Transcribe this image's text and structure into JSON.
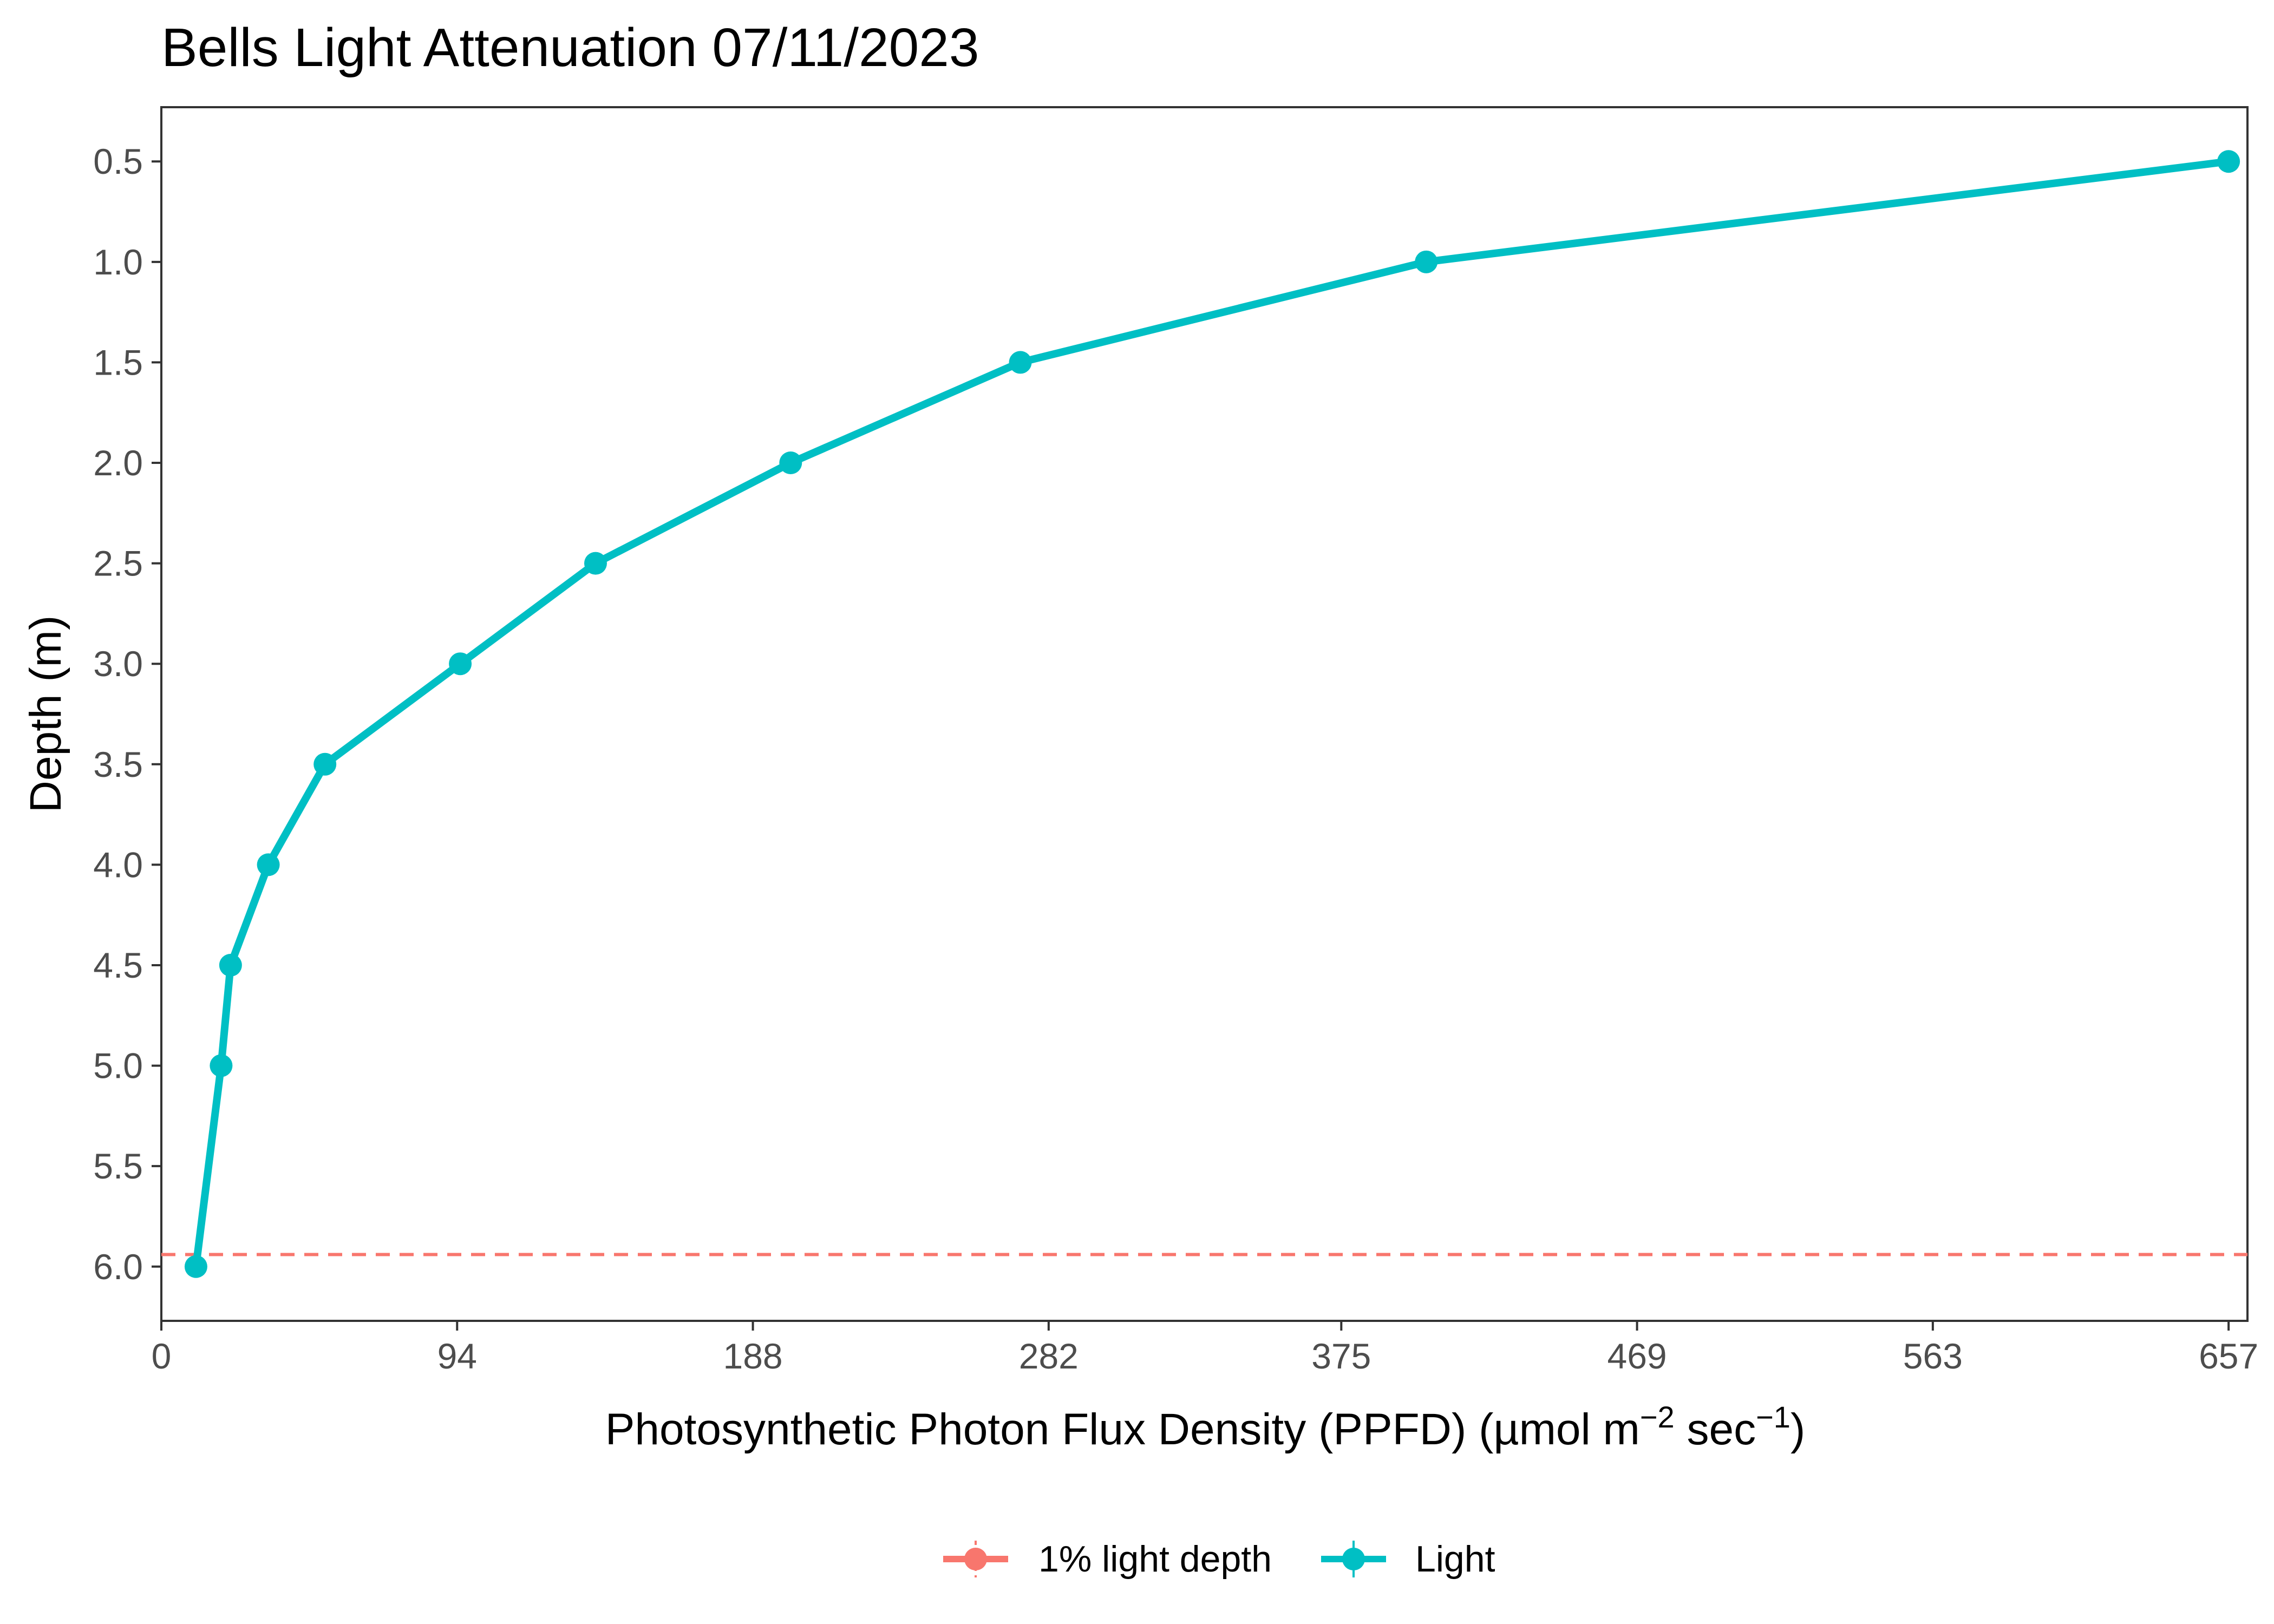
{
  "chart_data": {
    "type": "line",
    "title": "Bells Light Attenuation 07/11/2023",
    "xlabel": {
      "prefix": "Photosynthetic Photon Flux Density (PPFD) (µmol m",
      "sup1": "−2",
      "mid": " sec",
      "sup2": "−1",
      "suffix": ")"
    },
    "ylabel": "Depth (m)",
    "xlim": [
      0,
      663
    ],
    "ylim": [
      0.23,
      6.27
    ],
    "y_reversed": true,
    "x_ticks": [
      0,
      94,
      188,
      282,
      375,
      469,
      563,
      657
    ],
    "y_ticks": [
      "0.5",
      "1.0",
      "1.5",
      "2.0",
      "2.5",
      "3.0",
      "3.5",
      "4.0",
      "4.5",
      "5.0",
      "5.5",
      "6.0"
    ],
    "grid": false,
    "legend_position": "bottom",
    "series": [
      {
        "name": "Light",
        "color": "#00BFC4",
        "x": [
          657,
          402,
          273,
          200,
          138,
          95,
          52,
          34,
          22,
          19,
          11
        ],
        "y": [
          0.5,
          1.0,
          1.5,
          2.0,
          2.5,
          3.0,
          3.5,
          4.0,
          4.5,
          5.0,
          6.0
        ]
      },
      {
        "name": "1% light depth",
        "color": "#F8766D",
        "style": "dashed",
        "hline_y": 5.94
      }
    ]
  }
}
